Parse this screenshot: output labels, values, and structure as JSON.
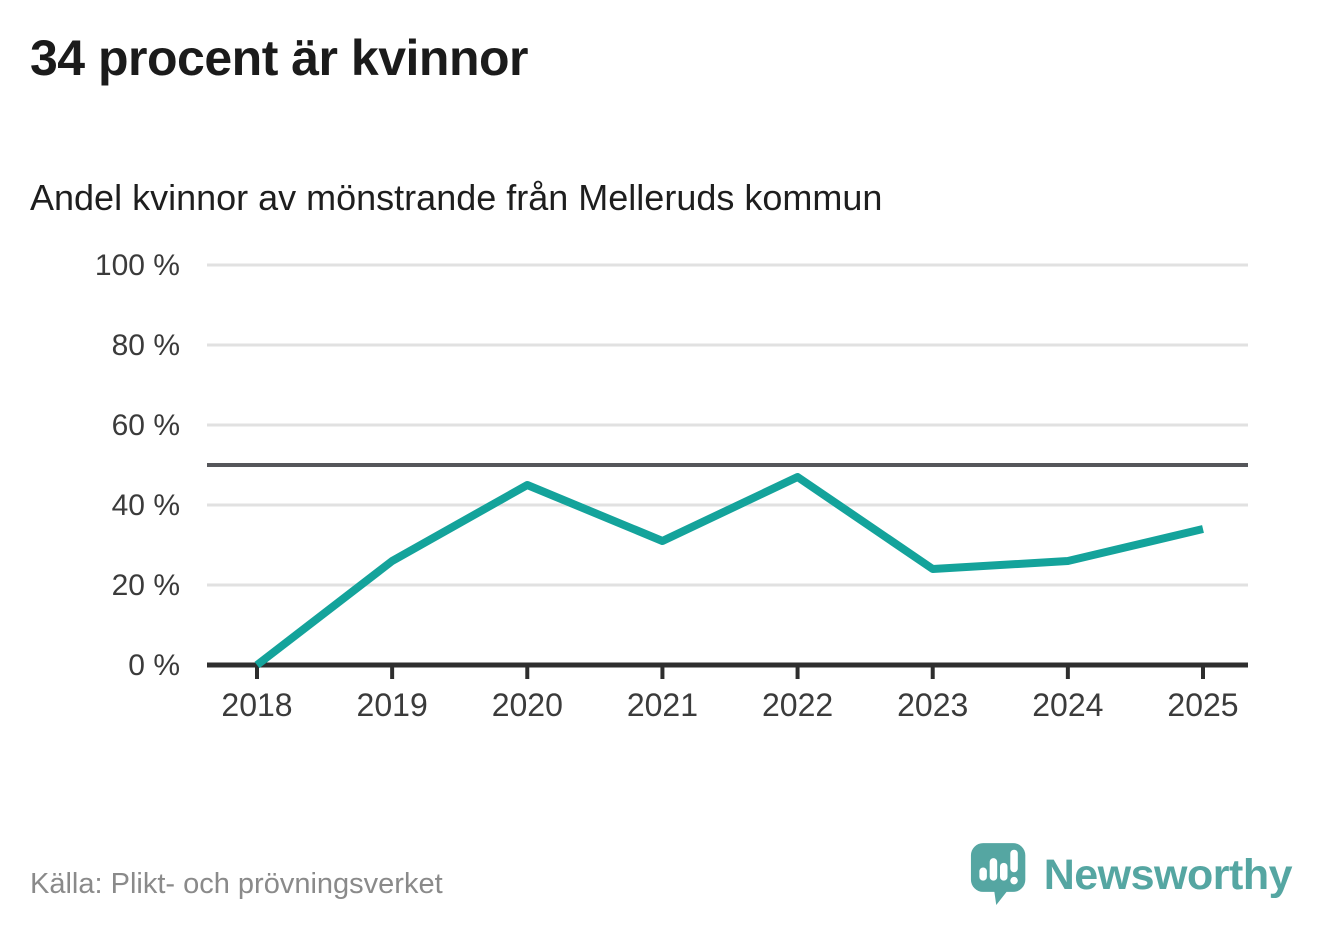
{
  "header": {
    "title": "34 procent är kvinnor",
    "subtitle": "Andel kvinnor av mönstrande från Melleruds kommun"
  },
  "chart_data": {
    "type": "line",
    "title": "34 procent är kvinnor",
    "subtitle": "Andel kvinnor av mönstrande från Melleruds kommun",
    "categories": [
      "2018",
      "2019",
      "2020",
      "2021",
      "2022",
      "2023",
      "2024",
      "2025"
    ],
    "series": [
      {
        "name": "Andel kvinnor av mönstrande",
        "values": [
          0,
          26,
          45,
          31,
          47,
          24,
          26,
          34
        ]
      }
    ],
    "unit": "%",
    "ylim": [
      0,
      100
    ],
    "y_ticks": [
      0,
      20,
      40,
      60,
      80,
      100
    ],
    "y_tick_labels": [
      "0 %",
      "20 %",
      "40 %",
      "60 %",
      "80 %",
      "100 %"
    ],
    "x_tick_labels": [
      "2018",
      "2019",
      "2020",
      "2021",
      "2022",
      "2023",
      "2024",
      "2025"
    ],
    "reference_line": 50,
    "grid": true,
    "legend": false
  },
  "footer": {
    "source": "Källa: Plikt- och prövningsverket",
    "brand": "Newsworthy"
  },
  "colors": {
    "line": "#14a39b",
    "grid": "#e1e1e1",
    "reference": "#55565a",
    "axis": "#2e2e2e",
    "tick_text": "#3b3b3b",
    "title_text": "#1b1b1b",
    "source_text": "#8a8a8a",
    "logo": "#55a6a2",
    "logo_marks": "#ffffff",
    "background": "#ffffff"
  }
}
